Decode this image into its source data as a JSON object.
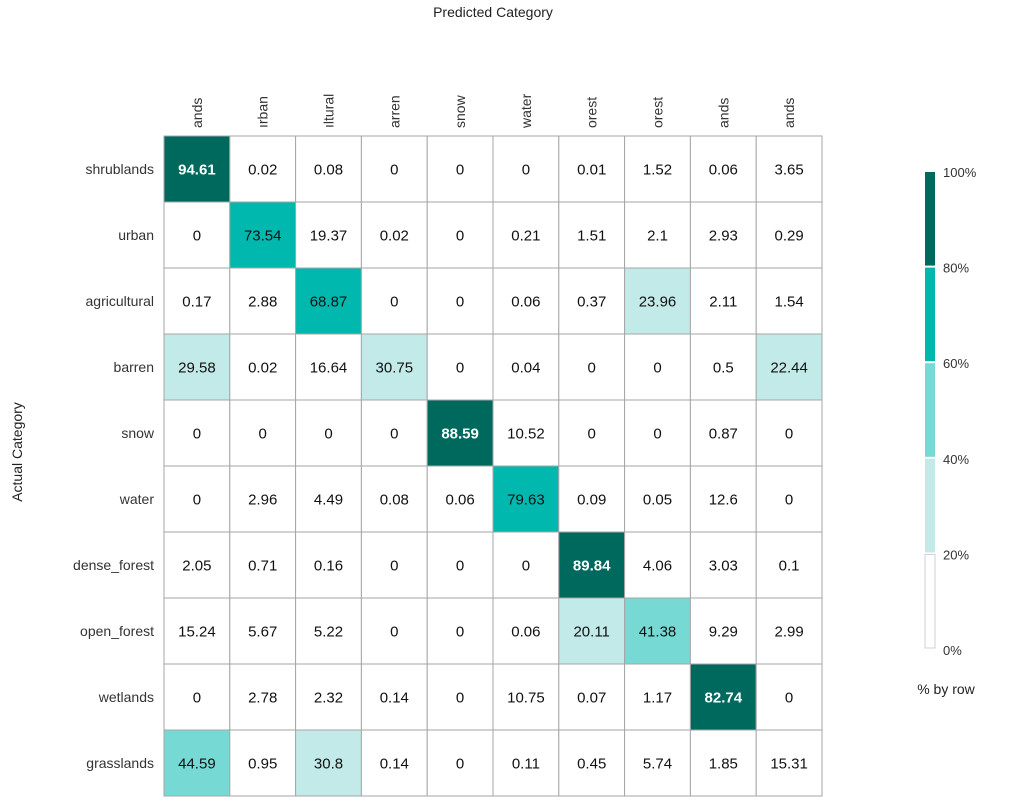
{
  "chart_data": {
    "type": "heatmap",
    "xlabel": "Predicted Category",
    "ylabel": "Actual Category",
    "x_tick_labels": [
      "ands",
      "ırban",
      "ıltural",
      "arren",
      "snow",
      "water",
      "orest",
      "orest",
      "ands",
      "ands"
    ],
    "y_tick_labels": [
      "shrublands",
      "urban",
      "agricultural",
      "barren",
      "snow",
      "water",
      "dense_forest",
      "open_forest",
      "wetlands",
      "grasslands"
    ],
    "values": [
      [
        94.61,
        0.02,
        0.08,
        0,
        0,
        0,
        0.01,
        1.52,
        0.06,
        3.65
      ],
      [
        0,
        73.54,
        19.37,
        0.02,
        0,
        0.21,
        1.51,
        2.1,
        2.93,
        0.29
      ],
      [
        0.17,
        2.88,
        68.87,
        0,
        0,
        0.06,
        0.37,
        23.96,
        2.11,
        1.54
      ],
      [
        29.58,
        0.02,
        16.64,
        30.75,
        0,
        0.04,
        0,
        0,
        0.5,
        22.44
      ],
      [
        0,
        0,
        0,
        0,
        88.59,
        10.52,
        0,
        0,
        0.87,
        0
      ],
      [
        0,
        2.96,
        4.49,
        0.08,
        0.06,
        79.63,
        0.09,
        0.05,
        12.6,
        0
      ],
      [
        2.05,
        0.71,
        0.16,
        0,
        0,
        0,
        89.84,
        4.06,
        3.03,
        0.1
      ],
      [
        15.24,
        5.67,
        5.22,
        0,
        0,
        0.06,
        20.11,
        41.38,
        9.29,
        2.99
      ],
      [
        0,
        2.78,
        2.32,
        0.14,
        0,
        10.75,
        0.07,
        1.17,
        82.74,
        0
      ],
      [
        44.59,
        0.95,
        30.8,
        0.14,
        0,
        0.11,
        0.45,
        5.74,
        1.85,
        15.31
      ]
    ],
    "color_scale": {
      "bins": [
        {
          "min": 0,
          "max": 20,
          "color": "#ffffff"
        },
        {
          "min": 20,
          "max": 40,
          "color": "#c2eae9"
        },
        {
          "min": 40,
          "max": 60,
          "color": "#76d9d3"
        },
        {
          "min": 60,
          "max": 80,
          "color": "#00b8ad"
        },
        {
          "min": 80,
          "max": 100,
          "color": "#00695e"
        }
      ],
      "tick_labels": [
        "100%",
        "80%",
        "60%",
        "40%",
        "20%",
        "0%"
      ],
      "caption": "% by row"
    },
    "text_colors": {
      "dark": "#111111",
      "light": "#ffffff"
    },
    "grid_color": "#a6a6a6"
  }
}
